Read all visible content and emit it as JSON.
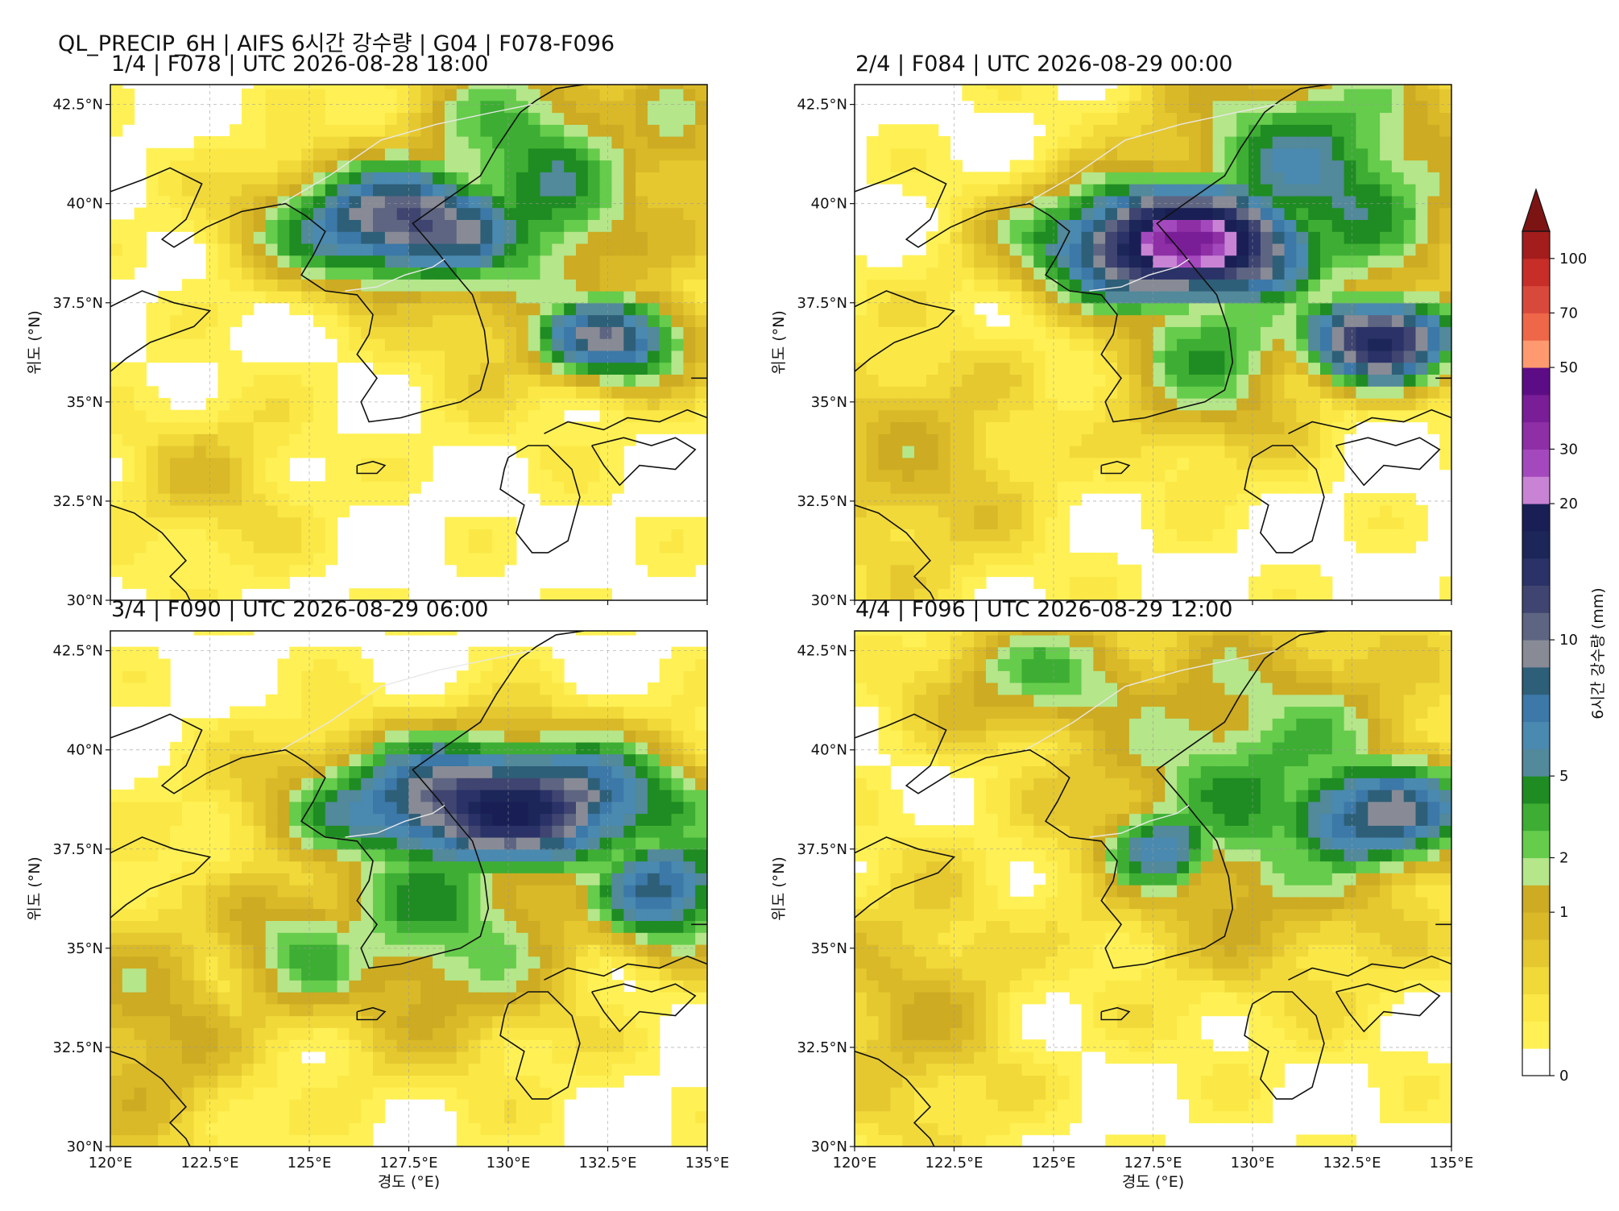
{
  "figure": {
    "suptitle": "QL_PRECIP_6H | AIFS 6시간 강수량 | G04 | F078-F096"
  },
  "panels": [
    {
      "title": "1/4 | F078 | UTC 2026-08-28 18:00",
      "show_xlabel": false
    },
    {
      "title": "2/4 | F084 | UTC 2026-08-29 00:00",
      "show_xlabel": false
    },
    {
      "title": "3/4 | F090 | UTC 2026-08-29 06:00",
      "show_xlabel": true
    },
    {
      "title": "4/4 | F096 | UTC 2026-08-29 12:00",
      "show_xlabel": true
    }
  ],
  "axes": {
    "xlabel": "경도 (°E)",
    "ylabel": "위도 (°N)",
    "xlim": [
      120,
      135
    ],
    "ylim": [
      30,
      43
    ],
    "xticks": [
      "120°E",
      "122.5°E",
      "125°E",
      "127.5°E",
      "130°E",
      "132.5°E",
      "135°E"
    ],
    "yticks": [
      "30°N",
      "32.5°N",
      "35°N",
      "37.5°N",
      "40°N",
      "42.5°N"
    ],
    "xtick_values": [
      120,
      122.5,
      125,
      127.5,
      130,
      132.5,
      135
    ],
    "ytick_values": [
      30,
      32.5,
      35,
      37.5,
      40,
      42.5
    ],
    "grid": true
  },
  "colorbar": {
    "label": "6시간 강수량 (mm)",
    "tick_labels": [
      "0",
      "1",
      "2",
      "5",
      "10",
      "20",
      "30",
      "50",
      "70",
      "100"
    ],
    "tick_bin_index": [
      0,
      6,
      8,
      11,
      16,
      21,
      23,
      26,
      28,
      30
    ],
    "extend": "max",
    "colors": [
      "#ffffff",
      "#fff155",
      "#fbe847",
      "#f1d93a",
      "#e5c830",
      "#d9b928",
      "#cdab22",
      "#b5e68a",
      "#66cc4c",
      "#3dae33",
      "#1e8c22",
      "#52899b",
      "#4a89b0",
      "#3c78a8",
      "#2e5f78",
      "#888b95",
      "#5e6582",
      "#3f4570",
      "#2a3267",
      "#1c2658",
      "#191f55",
      "#c983d5",
      "#a349bd",
      "#8e2fa6",
      "#7a1e98",
      "#5c0d85",
      "#ff9970",
      "#ee6748",
      "#d9493b",
      "#c72e28",
      "#a31d1d"
    ],
    "extend_color": "#7d1414"
  }
}
